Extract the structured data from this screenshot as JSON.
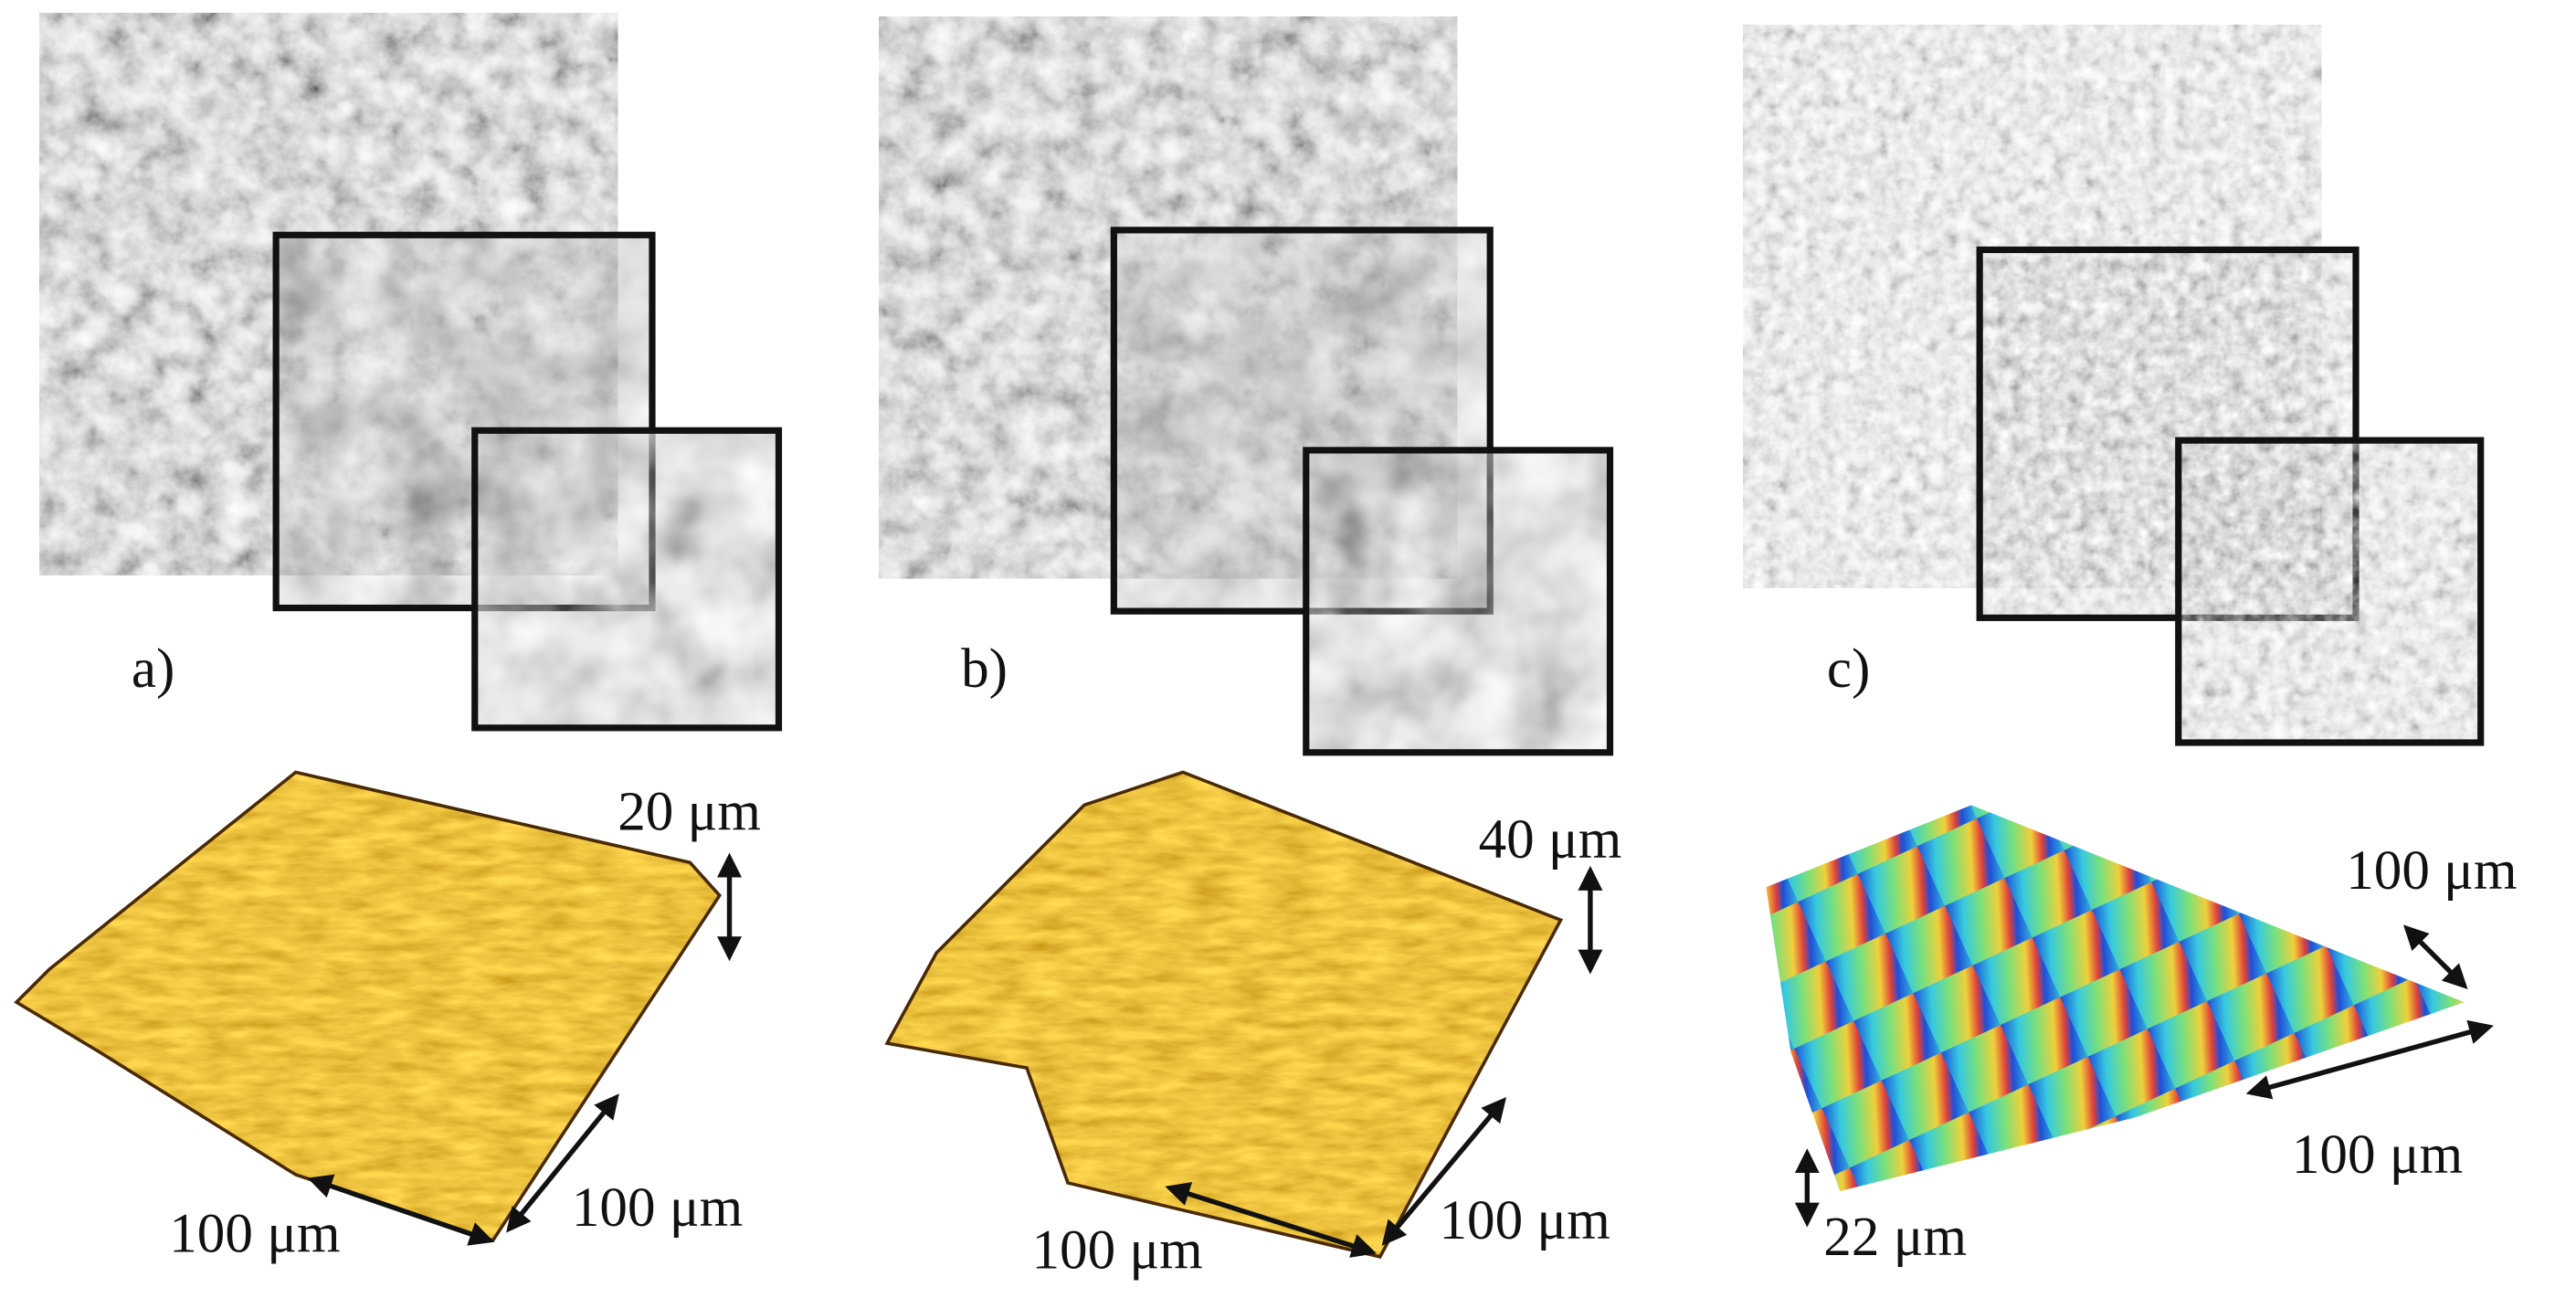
{
  "panels": [
    {
      "label": "a)",
      "height_scale": "20 μm",
      "scale_left": "100 μm",
      "scale_right": "100 μm"
    },
    {
      "label": "b)",
      "height_scale": "40 μm",
      "scale_left": "100 μm",
      "scale_right": "100 μm"
    },
    {
      "label": "c)",
      "height_scale": "22 μm",
      "scale_left": "100 μm",
      "scale_right": "100 μm"
    }
  ]
}
